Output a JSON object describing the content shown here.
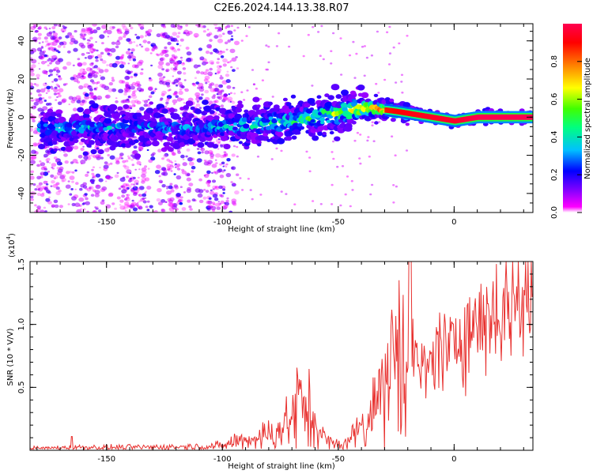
{
  "title": "C2E6.2024.144.13.38.R07",
  "chart_data": [
    {
      "type": "heatmap",
      "title": "C2E6.2024.144.13.38.R07",
      "xlabel": "Height of straight line (km)",
      "ylabel": "Frequency (Hz)",
      "xlim": [
        -183,
        34
      ],
      "ylim": [
        -50,
        49
      ],
      "x_ticks": [
        -150,
        -100,
        -50,
        0
      ],
      "y_ticks": [
        -40,
        -20,
        0,
        20,
        40
      ],
      "x_tick_labels": [
        "-150",
        "-100",
        "-50",
        "0"
      ],
      "y_tick_labels": [
        "-40",
        "-20",
        "0",
        "20",
        "40"
      ],
      "grid": false,
      "colorbar": {
        "label": "Normalized spectral amplitude",
        "range": [
          0,
          1
        ],
        "ticks": [
          0.0,
          0.2,
          0.4,
          0.6,
          0.8
        ],
        "tick_labels": [
          "0.0",
          "0.2",
          "0.4",
          "0.6",
          "0.8"
        ],
        "colors": [
          "#ffffff",
          "#ff00ff",
          "#8000ff",
          "#0000ff",
          "#00c0ff",
          "#00ff80",
          "#40ff00",
          "#ffff00",
          "#ff8000",
          "#ff0000",
          "#ff0040"
        ]
      },
      "ridge": {
        "description_points": [
          {
            "x": -170,
            "y": -6,
            "amp": 0.35
          },
          {
            "x": -140,
            "y": -5,
            "amp": 0.35
          },
          {
            "x": -110,
            "y": -6,
            "amp": 0.3
          },
          {
            "x": -90,
            "y": -4,
            "amp": 0.45
          },
          {
            "x": -70,
            "y": -2,
            "amp": 0.5
          },
          {
            "x": -50,
            "y": 2,
            "amp": 0.6
          },
          {
            "x": -38,
            "y": 5,
            "amp": 0.85
          },
          {
            "x": -25,
            "y": 3,
            "amp": 0.9
          },
          {
            "x": -10,
            "y": 0,
            "amp": 0.95
          },
          {
            "x": 0,
            "y": -2,
            "amp": 0.95
          },
          {
            "x": 10,
            "y": 0,
            "amp": 1.0
          },
          {
            "x": 33,
            "y": 0,
            "amp": 1.0
          }
        ]
      }
    },
    {
      "type": "line",
      "xlabel": "Height of straight line (km)",
      "ylabel": "SNR (10 * V/V)",
      "y_multiplier_label": "(x10",
      "y_multiplier_exp": "4",
      "xlim": [
        -183,
        34
      ],
      "ylim": [
        0,
        15000
      ],
      "x_ticks": [
        -150,
        -100,
        -50,
        0
      ],
      "x_tick_labels": [
        "-150",
        "-100",
        "-50",
        "0"
      ],
      "y_ticks": [
        5000,
        10000,
        15000
      ],
      "y_tick_labels": [
        "0.5",
        "1.0",
        "1.5"
      ],
      "grid": false,
      "series": [
        {
          "color": "#e8312f",
          "x": [
            -183,
            -170,
            -160,
            -150,
            -130,
            -110,
            -100,
            -95,
            -85,
            -80,
            -75,
            -70,
            -67,
            -64,
            -60,
            -57,
            -55,
            -52,
            -50,
            -48,
            -45,
            -42,
            -38,
            -35,
            -32,
            -28,
            -25,
            -22,
            -20,
            -19,
            -18,
            -15,
            -12,
            -10,
            -8,
            -5,
            -2,
            0,
            5,
            10,
            15,
            20,
            25,
            30,
            34
          ],
          "y": [
            150,
            200,
            250,
            220,
            250,
            300,
            350,
            700,
            1000,
            1300,
            1700,
            2500,
            3800,
            3200,
            2300,
            1300,
            700,
            500,
            450,
            500,
            800,
            1500,
            2500,
            3500,
            4500,
            6000,
            7000,
            8500,
            11000,
            14000,
            7500,
            6500,
            6000,
            7000,
            8000,
            8500,
            7000,
            9000,
            9500,
            10000,
            10800,
            11000,
            11800,
            12200,
            12500
          ]
        }
      ]
    }
  ]
}
